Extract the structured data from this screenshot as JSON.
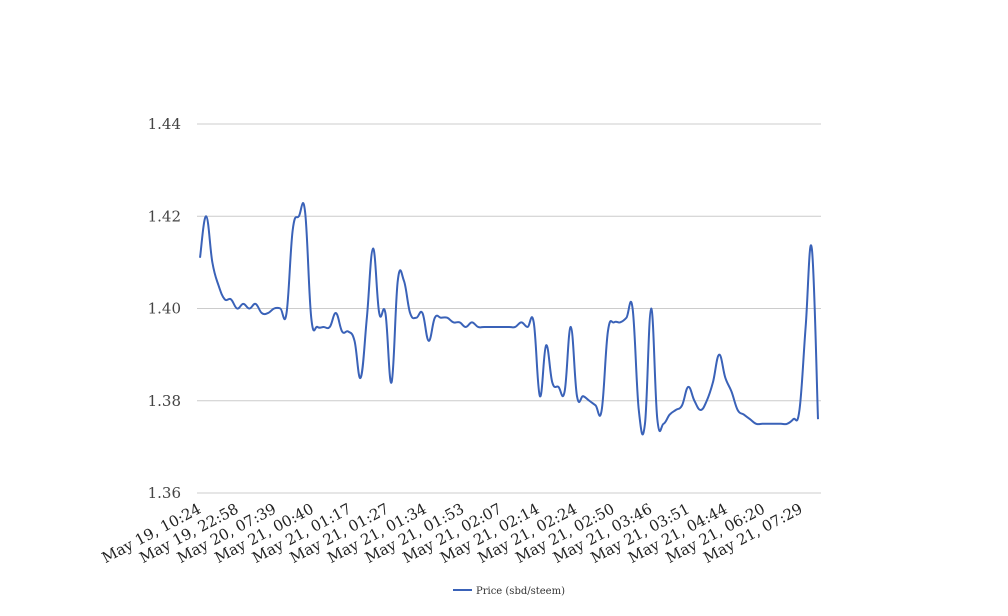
{
  "chart_data": {
    "type": "line",
    "title": "",
    "xlabel": "",
    "ylabel": "",
    "ylim": [
      1.36,
      1.44
    ],
    "yticks": [
      "1.36",
      "1.38",
      "1.40",
      "1.42",
      "1.44"
    ],
    "x_tick_labels": [
      "May 19, 10:24",
      "May 19, 22:58",
      "May 20, 07:39",
      "May 21, 00:40",
      "May 21, 01:17",
      "May 21, 01:27",
      "May 21, 01:34",
      "May 21, 01:53",
      "May 21, 02:07",
      "May 21, 02:14",
      "May 21, 02:24",
      "May 21, 02:50",
      "May 21, 03:46",
      "May 21, 03:51",
      "May 21, 04:44",
      "May 21, 06:20",
      "May 21, 07:29"
    ],
    "grid": true,
    "legend_position": "bottom",
    "series": [
      {
        "name": "Price (sbd/steem)",
        "color": "#3a62b8",
        "values": [
          1.411,
          1.42,
          1.41,
          1.405,
          1.402,
          1.402,
          1.4,
          1.401,
          1.4,
          1.401,
          1.399,
          1.399,
          1.4,
          1.4,
          1.399,
          1.417,
          1.42,
          1.421,
          1.398,
          1.396,
          1.396,
          1.396,
          1.399,
          1.395,
          1.395,
          1.393,
          1.385,
          1.398,
          1.413,
          1.399,
          1.399,
          1.384,
          1.406,
          1.406,
          1.399,
          1.398,
          1.399,
          1.393,
          1.398,
          1.398,
          1.398,
          1.397,
          1.397,
          1.396,
          1.397,
          1.396,
          1.396,
          1.396,
          1.396,
          1.396,
          1.396,
          1.396,
          1.397,
          1.396,
          1.397,
          1.381,
          1.392,
          1.384,
          1.383,
          1.382,
          1.396,
          1.381,
          1.381,
          1.38,
          1.379,
          1.378,
          1.395,
          1.397,
          1.397,
          1.398,
          1.4,
          1.378,
          1.375,
          1.4,
          1.376,
          1.375,
          1.377,
          1.378,
          1.379,
          1.383,
          1.38,
          1.378,
          1.38,
          1.384,
          1.39,
          1.385,
          1.382,
          1.378,
          1.377,
          1.376,
          1.375,
          1.375,
          1.375,
          1.375,
          1.375,
          1.375,
          1.376,
          1.378,
          1.396,
          1.413,
          1.376
        ]
      }
    ]
  }
}
